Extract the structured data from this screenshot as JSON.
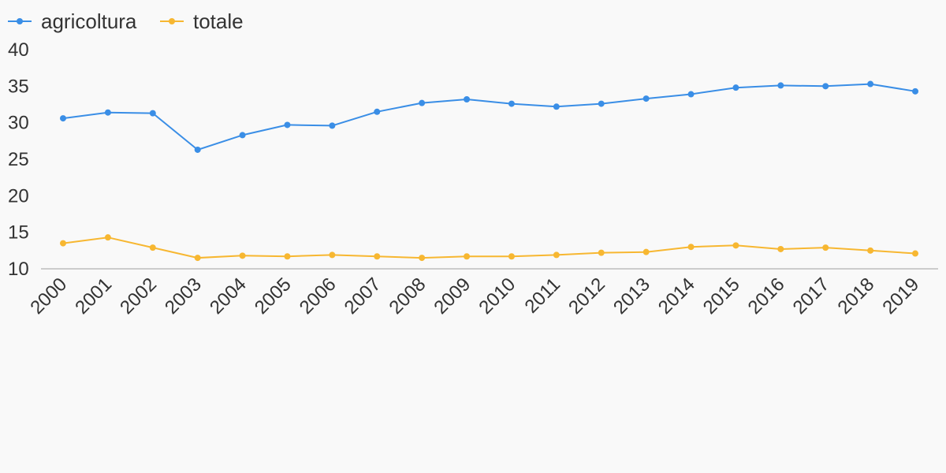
{
  "chart_data": {
    "type": "line",
    "title": "",
    "xlabel": "",
    "ylabel": "",
    "categories": [
      "2000",
      "2001",
      "2002",
      "2003",
      "2004",
      "2005",
      "2006",
      "2007",
      "2008",
      "2009",
      "2010",
      "2011",
      "2012",
      "2013",
      "2014",
      "2015",
      "2016",
      "2017",
      "2018",
      "2019"
    ],
    "ylim": [
      10,
      40
    ],
    "yticks": [
      "10",
      "15",
      "20",
      "25",
      "30",
      "35",
      "40"
    ],
    "grid": false,
    "legend": "top-left",
    "series": [
      {
        "name": "agricoltura",
        "color": "#3a8ee6",
        "values": [
          30.6,
          31.4,
          31.3,
          26.3,
          28.3,
          29.7,
          29.6,
          31.5,
          32.7,
          33.2,
          32.6,
          32.2,
          32.6,
          33.3,
          33.9,
          34.8,
          35.1,
          35.0,
          35.3,
          34.3
        ]
      },
      {
        "name": "totale",
        "color": "#f7b731",
        "values": [
          13.5,
          14.3,
          12.9,
          11.5,
          11.8,
          11.7,
          11.9,
          11.7,
          11.5,
          11.7,
          11.7,
          11.9,
          12.2,
          12.3,
          13.0,
          13.2,
          12.7,
          12.9,
          12.5,
          12.1
        ]
      }
    ]
  }
}
